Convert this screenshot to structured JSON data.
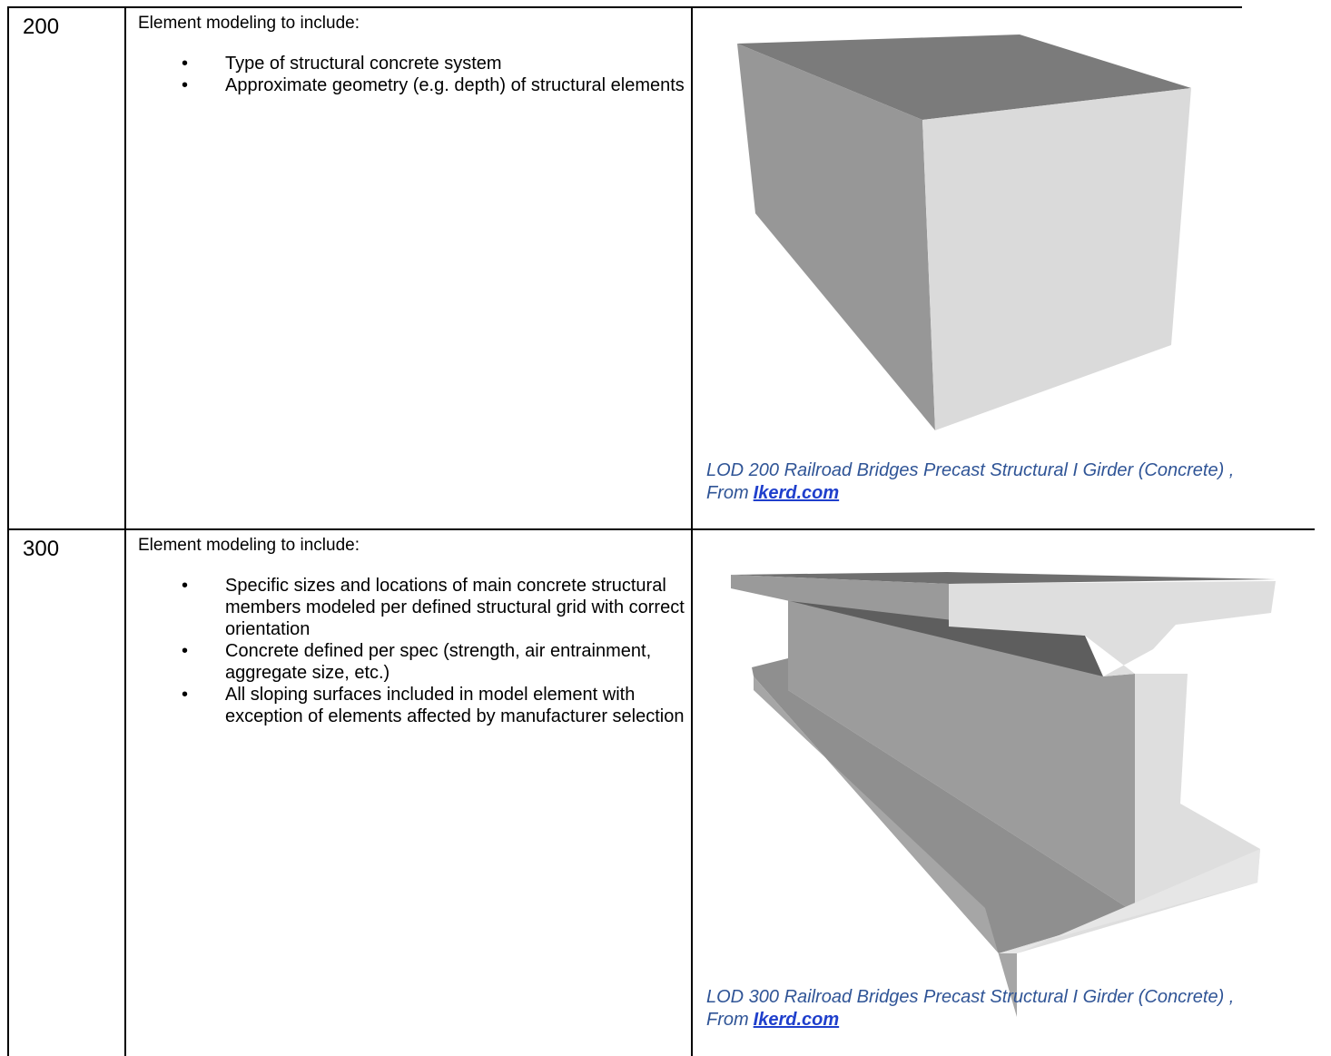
{
  "rows": [
    {
      "lod": "200",
      "heading": "Element modeling to include:",
      "bullets": [
        "Type of structural concrete system",
        "Approximate geometry (e.g. depth) of structural elements"
      ],
      "caption": {
        "text": "LOD 200 Railroad Bridges Precast Structural I Girder (Concrete) , From",
        "link": "Ikerd.com"
      }
    },
    {
      "lod": "300",
      "heading": "Element modeling to include:",
      "bullets": [
        "Specific sizes and locations of main concrete structural members modeled per defined structural grid with correct orientation",
        "Concrete defined per spec (strength, air entrainment, aggregate size, etc.)",
        "All sloping surfaces included in model element with exception of elements affected by manufacturer selection"
      ],
      "caption": {
        "text": "LOD 300 Railroad Bridges Precast Structural I Girder (Concrete) , From",
        "link": "Ikerd.com"
      }
    }
  ]
}
